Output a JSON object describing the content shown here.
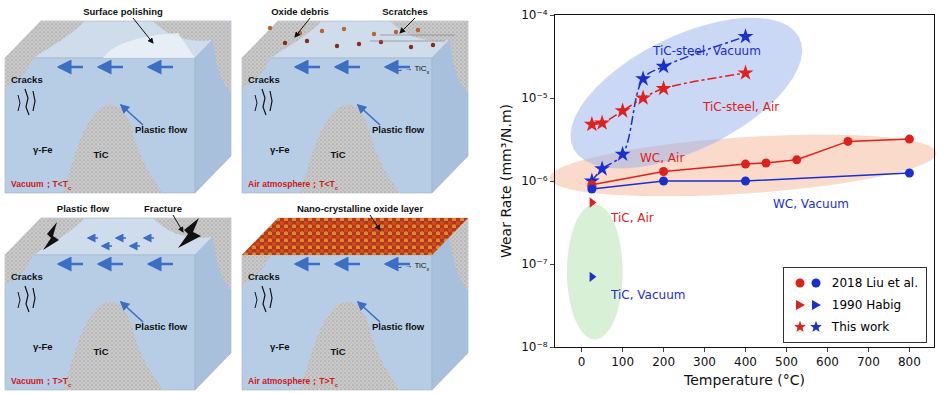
{
  "diagram": {
    "panels": [
      {
        "top_labels": [
          "Surface polishing"
        ],
        "cracks": "Cracks",
        "plastic_flow": "Plastic flow",
        "matrix": "γ-Fe",
        "particle": "TiC",
        "condition": {
          "text": "Vacuum；T<T",
          "subscript": "c"
        }
      },
      {
        "top_labels": [
          "Oxide debris",
          "Scratches"
        ],
        "reaction": {
          "text": "TiC → TiC",
          "subscript": "x"
        },
        "cracks": "Cracks",
        "plastic_flow": "Plastic flow",
        "matrix": "γ-Fe",
        "particle": "TiC",
        "condition": {
          "text": "Air atmosphere；T<T",
          "subscript": "c"
        }
      },
      {
        "top_labels": [
          "Plastic flow",
          "Fracture"
        ],
        "cracks": "Cracks",
        "plastic_flow": "Plastic flow",
        "matrix": "γ-Fe",
        "particle": "TiC",
        "condition": {
          "text": "Vacuum；T>T",
          "subscript": "c"
        }
      },
      {
        "top_labels": [
          "Nano-crystalline oxide layer"
        ],
        "reaction": {
          "text": "TiC → TiC",
          "subscript": "x"
        },
        "cracks": "Cracks",
        "plastic_flow": "Plastic flow",
        "matrix": "γ-Fe",
        "particle": "TiC",
        "condition": {
          "text": "Air atmosphere；T>T",
          "subscript": "c"
        }
      }
    ]
  },
  "chart_data": {
    "type": "scatter",
    "x_label": "Temperature (°C)",
    "y_label": "Wear Rate (mm³/N.m)",
    "log": "y",
    "grid": false,
    "xlim": [
      -65,
      860
    ],
    "xticks": [
      0,
      100,
      200,
      300,
      400,
      500,
      600,
      700,
      800
    ],
    "ylim": [
      1e-08,
      0.0001
    ],
    "yticks": [
      {
        "value": 1e-08,
        "label": "10⁻⁸"
      },
      {
        "value": 1e-07,
        "label": "10⁻⁷"
      },
      {
        "value": 1e-06,
        "label": "10⁻⁶"
      },
      {
        "value": 1e-05,
        "label": "10⁻⁵"
      },
      {
        "value": 0.0001,
        "label": "10⁻⁴"
      }
    ],
    "series": [
      {
        "name": "TiC-steel, Vacuum",
        "color": "#1a2fd0",
        "marker": "star",
        "line_style": "dashdot",
        "x": [
          25,
          50,
          100,
          150,
          200,
          400
        ],
        "values": [
          1e-06,
          1.4e-06,
          2.1e-06,
          1.7e-05,
          2.4e-05,
          5.5e-05
        ]
      },
      {
        "name": "TiC-steel, Air",
        "color": "#e0201b",
        "marker": "star",
        "line_style": "dashdot",
        "x": [
          25,
          50,
          100,
          150,
          200,
          400
        ],
        "values": [
          4.8e-06,
          5e-06,
          7e-06,
          1e-05,
          1.3e-05,
          2e-05
        ]
      },
      {
        "name": "WC, Air",
        "color": "#e0201b",
        "marker": "circle",
        "line_style": "solid",
        "x": [
          25,
          200,
          400,
          450,
          525,
          650,
          800
        ],
        "values": [
          9e-07,
          1.3e-06,
          1.6e-06,
          1.65e-06,
          1.8e-06,
          3e-06,
          3.2e-06
        ]
      },
      {
        "name": "WC, Vacuum",
        "color": "#1a2fd0",
        "marker": "circle",
        "line_style": "solid",
        "x": [
          25,
          200,
          400,
          800
        ],
        "values": [
          8e-07,
          1e-06,
          1e-06,
          1.25e-06
        ]
      },
      {
        "name": "TiC, Air",
        "color": "#e0201b",
        "marker": "triangle-right",
        "line_style": "none",
        "x": [
          25
        ],
        "values": [
          5.5e-07
        ]
      },
      {
        "name": "TiC, Vacuum",
        "color": "#1a2fd0",
        "marker": "triangle-right",
        "line_style": "none",
        "x": [
          25
        ],
        "values": [
          7e-08
        ]
      }
    ],
    "legend": "lower right",
    "legend_items": [
      {
        "label": "2018 Liu et al.",
        "marker": "circle",
        "colors": [
          "#e0201b",
          "#1a2fd0"
        ]
      },
      {
        "label": "1990 Habig",
        "marker": "triangle-right",
        "colors": [
          "#e0201b",
          "#1a2fd0"
        ]
      },
      {
        "label": "This work",
        "marker": "star",
        "colors": [
          "#e0201b",
          "#1a2fd0"
        ]
      }
    ]
  }
}
